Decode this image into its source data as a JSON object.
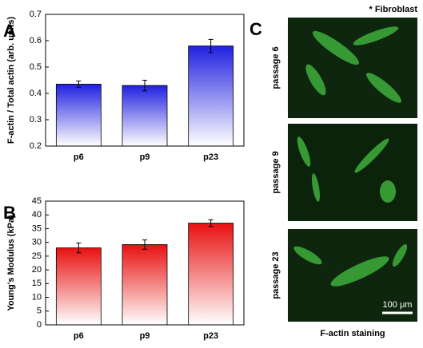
{
  "chart_data": [
    {
      "type": "bar",
      "panel": "A",
      "ylabel": "F-actin / Total actin (arb. units)",
      "categories": [
        "p6",
        "p9",
        "p23"
      ],
      "values": [
        0.435,
        0.43,
        0.58
      ],
      "errors": [
        0.012,
        0.02,
        0.025
      ],
      "color": "#2020e0",
      "ylim": [
        0.2,
        0.7
      ],
      "yticks": [
        0.2,
        0.3,
        0.4,
        0.5,
        0.6,
        0.7
      ]
    },
    {
      "type": "bar",
      "panel": "B",
      "ylabel": "Young's Modulus (kPa)",
      "categories": [
        "p6",
        "p9",
        "p23"
      ],
      "values": [
        28,
        29.2,
        37
      ],
      "errors": [
        1.8,
        1.7,
        1.2
      ],
      "color": "#e81010",
      "ylim": [
        0,
        45
      ],
      "yticks": [
        0,
        5,
        10,
        15,
        20,
        25,
        30,
        35,
        40,
        45
      ]
    }
  ],
  "images": {
    "panel": "C",
    "note": "* Fibroblast",
    "rows": [
      "passage 6",
      "passage 9",
      "passage 23"
    ],
    "scale_bar": "100 μm",
    "caption": "F-actin staining"
  }
}
